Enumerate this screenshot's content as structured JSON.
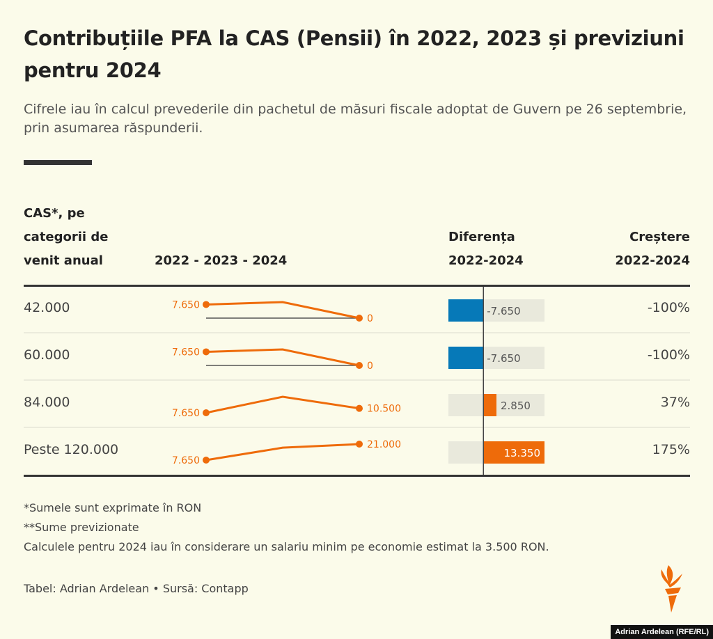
{
  "title": "Contribuțiile PFA la CAS (Pensii) în 2022, 2023 și previziuni pentru 2024",
  "subtitle": "Cifrele iau în calcul prevederile din pachetul de măsuri fiscale adoptat de Guvern pe 26 septembrie, prin asumarea răspunderii.",
  "headers": {
    "category": "CAS*, pe categorii de venit anual",
    "trend": "2022 - 2023 - 2024",
    "diff": "Diferența 2022-2024",
    "growth": "Creștere 2022-2024"
  },
  "rows": [
    {
      "category": "42.000",
      "start_label": "7.650",
      "end_label": "0",
      "diff_label": "-7.650",
      "growth": "-100%"
    },
    {
      "category": "60.000",
      "start_label": "7.650",
      "end_label": "0",
      "diff_label": "-7.650",
      "growth": "-100%"
    },
    {
      "category": "84.000",
      "start_label": "7.650",
      "end_label": "10.500",
      "diff_label": "2.850",
      "growth": "37%"
    },
    {
      "category": "Peste 120.000",
      "start_label": "7.650",
      "end_label": "21.000",
      "diff_label": "13.350",
      "growth": "175%"
    }
  ],
  "chart_data": {
    "type": "table",
    "years": [
      "2022",
      "2023",
      "2024"
    ],
    "series": [
      {
        "name": "42.000",
        "values": [
          7650,
          9000,
          0
        ],
        "diff": -7650,
        "growth_pct": -100
      },
      {
        "name": "60.000",
        "values": [
          7650,
          9000,
          0
        ],
        "diff": -7650,
        "growth_pct": -100
      },
      {
        "name": "84.000",
        "values": [
          7650,
          18000,
          10500
        ],
        "diff": 2850,
        "growth_pct": 37
      },
      {
        "name": "Peste 120.000",
        "values": [
          7650,
          18000,
          21000
        ],
        "diff": 13350,
        "growth_pct": 175
      }
    ],
    "diff_range": [
      -7650,
      13350
    ]
  },
  "footnotes": [
    "*Sumele sunt exprimate în RON",
    "**Sume previzionate",
    "Calculele pentru 2024 iau în considerare un salariu minim pe economie estimat la 3.500 RON."
  ],
  "credit": "Tabel: Adrian Ardelean • Sursă: Contapp",
  "watermark": "Adrian Ardelean (RFE/RL)",
  "colors": {
    "line": "#ee6b0a",
    "negative": "#0679b8",
    "positive": "#ee6b0a",
    "bar_bg": "#e9e9dc",
    "background": "#fbfbea"
  }
}
